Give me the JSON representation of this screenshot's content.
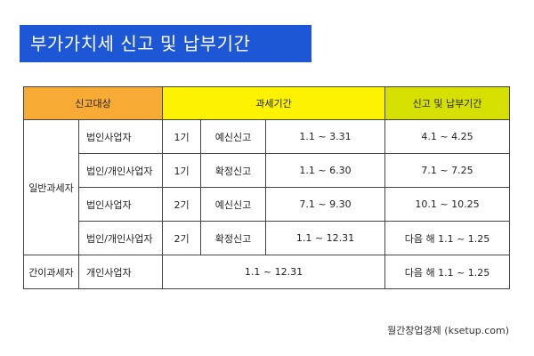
{
  "title": "부가가치세 신고 및 납부기간",
  "table": {
    "headers": {
      "target": "신고대상",
      "period": "과세기간",
      "deadline": "신고 및 납부기간"
    },
    "general": {
      "label": "일반과세자",
      "rows": [
        {
          "type": "법인사업자",
          "term": "1기",
          "report": "예신신고",
          "period": "1.1 ~ 3.31",
          "deadline": "4.1 ~ 4.25"
        },
        {
          "type": "법인/개인사업자",
          "term": "1기",
          "report": "확정신고",
          "period": "1.1 ~ 6.30",
          "deadline": "7.1 ~ 7.25"
        },
        {
          "type": "법인사업자",
          "term": "2기",
          "report": "예신신고",
          "period": "7.1 ~ 9.30",
          "deadline": "10.1 ~ 10.25"
        },
        {
          "type": "법인/개인사업자",
          "term": "2기",
          "report": "확정신고",
          "period": "1.1 ~ 12.31",
          "deadline": "다음 해 1.1 ~ 1.25"
        }
      ]
    },
    "simple": {
      "label": "간이과세자",
      "type": "개인사업자",
      "period": "1.1 ~ 12.31",
      "deadline": "다음 해 1.1 ~ 1.25"
    }
  },
  "footer": "월간창업경제 (ksetup.com)",
  "colors": {
    "title_bg": "#1e57d6",
    "header_target": "#f8ab34",
    "header_period": "#fdf200",
    "header_deadline": "#d6e000"
  }
}
